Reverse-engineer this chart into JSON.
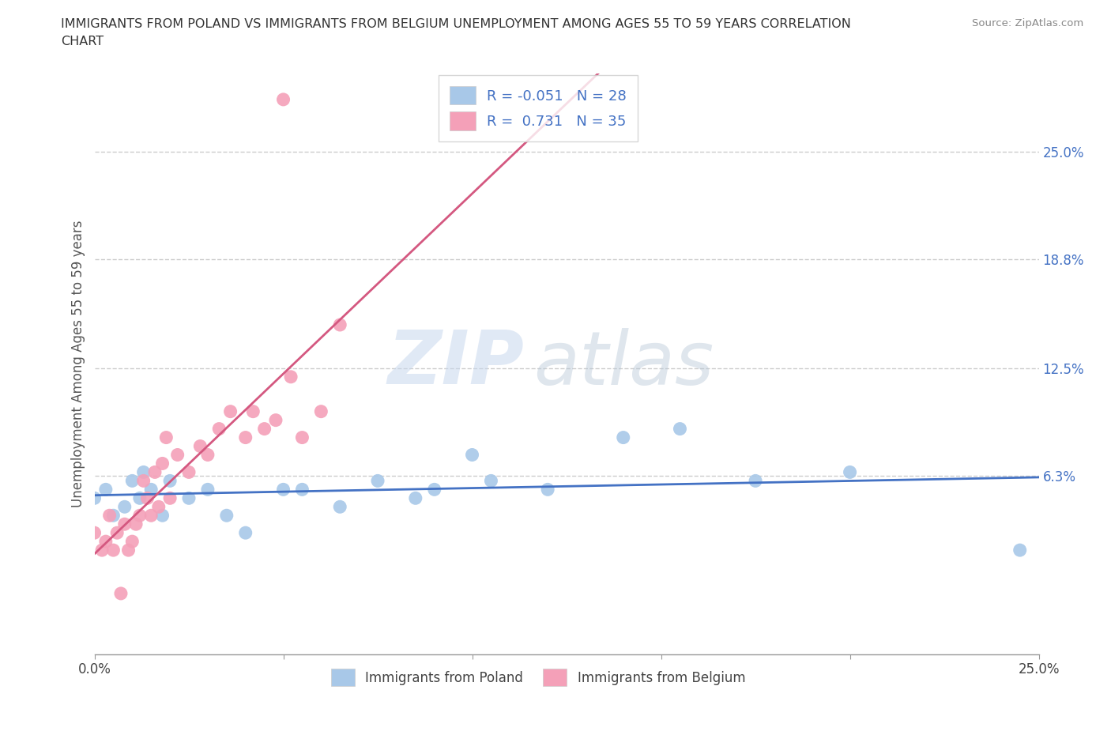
{
  "title_line1": "IMMIGRANTS FROM POLAND VS IMMIGRANTS FROM BELGIUM UNEMPLOYMENT AMONG AGES 55 TO 59 YEARS CORRELATION",
  "title_line2": "CHART",
  "source": "Source: ZipAtlas.com",
  "ylabel": "Unemployment Among Ages 55 to 59 years",
  "xlim": [
    0.0,
    0.25
  ],
  "ylim": [
    -0.04,
    0.295
  ],
  "watermark_zip": "ZIP",
  "watermark_atlas": "atlas",
  "legend_r_poland": "-0.051",
  "legend_n_poland": "28",
  "legend_r_belgium": "0.731",
  "legend_n_belgium": "35",
  "color_poland": "#a8c8e8",
  "color_belgium": "#f4a0b8",
  "trendline_poland": "#4472c4",
  "trendline_belgium": "#d45880",
  "grid_color": "#cccccc",
  "poland_x": [
    0.0,
    0.003,
    0.005,
    0.008,
    0.01,
    0.012,
    0.013,
    0.015,
    0.018,
    0.02,
    0.025,
    0.03,
    0.035,
    0.04,
    0.05,
    0.055,
    0.065,
    0.075,
    0.085,
    0.09,
    0.1,
    0.105,
    0.12,
    0.14,
    0.155,
    0.175,
    0.2,
    0.245
  ],
  "poland_y": [
    0.05,
    0.055,
    0.04,
    0.045,
    0.06,
    0.05,
    0.065,
    0.055,
    0.04,
    0.06,
    0.05,
    0.055,
    0.04,
    0.03,
    0.055,
    0.055,
    0.045,
    0.06,
    0.05,
    0.055,
    0.075,
    0.06,
    0.055,
    0.085,
    0.09,
    0.06,
    0.065,
    0.02
  ],
  "belgium_x": [
    0.0,
    0.002,
    0.003,
    0.004,
    0.005,
    0.006,
    0.007,
    0.008,
    0.009,
    0.01,
    0.011,
    0.012,
    0.013,
    0.014,
    0.015,
    0.016,
    0.017,
    0.018,
    0.019,
    0.02,
    0.022,
    0.025,
    0.028,
    0.03,
    0.033,
    0.036,
    0.04,
    0.042,
    0.045,
    0.048,
    0.05,
    0.052,
    0.055,
    0.06,
    0.065
  ],
  "belgium_y": [
    0.03,
    0.02,
    0.025,
    0.04,
    0.02,
    0.03,
    -0.005,
    0.035,
    0.02,
    0.025,
    0.035,
    0.04,
    0.06,
    0.05,
    0.04,
    0.065,
    0.045,
    0.07,
    0.085,
    0.05,
    0.075,
    0.065,
    0.08,
    0.075,
    0.09,
    0.1,
    0.085,
    0.1,
    0.09,
    0.095,
    0.28,
    0.12,
    0.085,
    0.1,
    0.15
  ]
}
